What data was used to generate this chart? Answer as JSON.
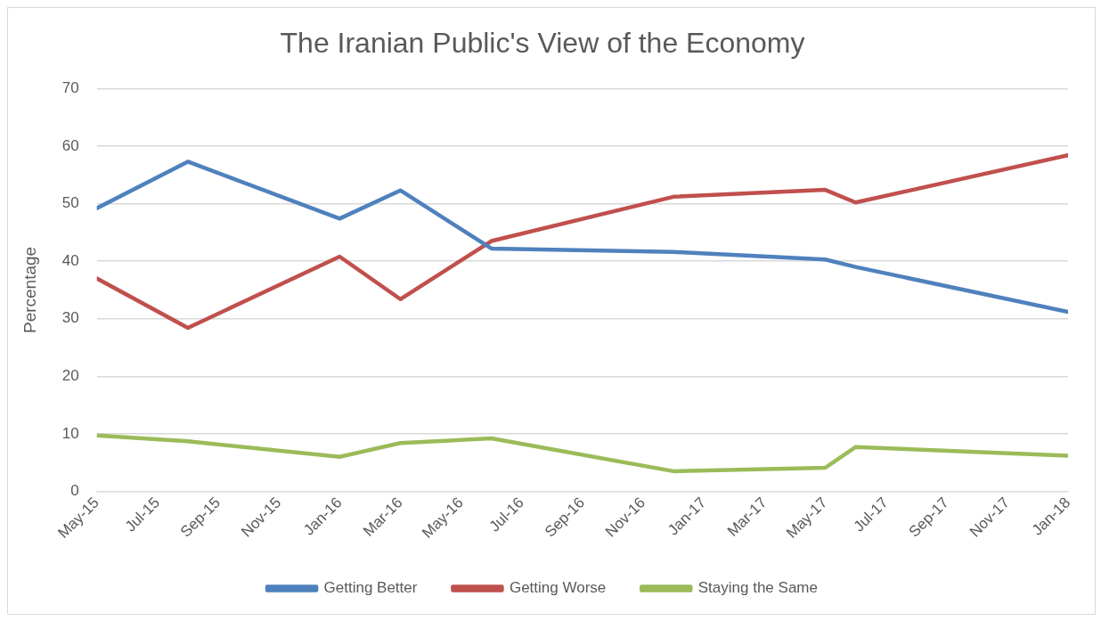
{
  "chart_data": {
    "type": "line",
    "title": "The Iranian Public's View of the Economy",
    "ylabel": "Percentage",
    "x": [
      "2015-05",
      "2015-08",
      "2016-01",
      "2016-03",
      "2016-06",
      "2016-12",
      "2017-05",
      "2017-06",
      "2018-01"
    ],
    "series": [
      {
        "name": "Getting Better",
        "color": "#4f81bd",
        "values": [
          49.2,
          57.3,
          47.4,
          52.3,
          42.2,
          41.6,
          40.3,
          39.0,
          31.2
        ]
      },
      {
        "name": "Getting Worse",
        "color": "#c0504d",
        "values": [
          37.0,
          28.4,
          40.8,
          33.4,
          43.5,
          51.2,
          52.4,
          50.2,
          58.4
        ]
      },
      {
        "name": "Staying the Same",
        "color": "#9bbb59",
        "values": [
          9.7,
          8.7,
          6.0,
          8.4,
          9.2,
          3.5,
          4.1,
          7.7,
          6.2
        ]
      }
    ],
    "xlim": [
      "2015-05",
      "2018-01"
    ],
    "xticks": [
      {
        "value": "2015-05",
        "label": "May-15"
      },
      {
        "value": "2015-07",
        "label": "Jul-15"
      },
      {
        "value": "2015-09",
        "label": "Sep-15"
      },
      {
        "value": "2015-11",
        "label": "Nov-15"
      },
      {
        "value": "2016-01",
        "label": "Jan-16"
      },
      {
        "value": "2016-03",
        "label": "Mar-16"
      },
      {
        "value": "2016-05",
        "label": "May-16"
      },
      {
        "value": "2016-07",
        "label": "Jul-16"
      },
      {
        "value": "2016-09",
        "label": "Sep-16"
      },
      {
        "value": "2016-11",
        "label": "Nov-16"
      },
      {
        "value": "2017-01",
        "label": "Jan-17"
      },
      {
        "value": "2017-03",
        "label": "Mar-17"
      },
      {
        "value": "2017-05",
        "label": "May-17"
      },
      {
        "value": "2017-07",
        "label": "Jul-17"
      },
      {
        "value": "2017-09",
        "label": "Sep-17"
      },
      {
        "value": "2017-11",
        "label": "Nov-17"
      },
      {
        "value": "2018-01",
        "label": "Jan-18"
      }
    ],
    "ylim": [
      0,
      70
    ],
    "yticks": [
      0,
      10,
      20,
      30,
      40,
      50,
      60,
      70
    ],
    "grid": "y",
    "legend": "bottom",
    "marker": "none",
    "line_style": "solid"
  }
}
